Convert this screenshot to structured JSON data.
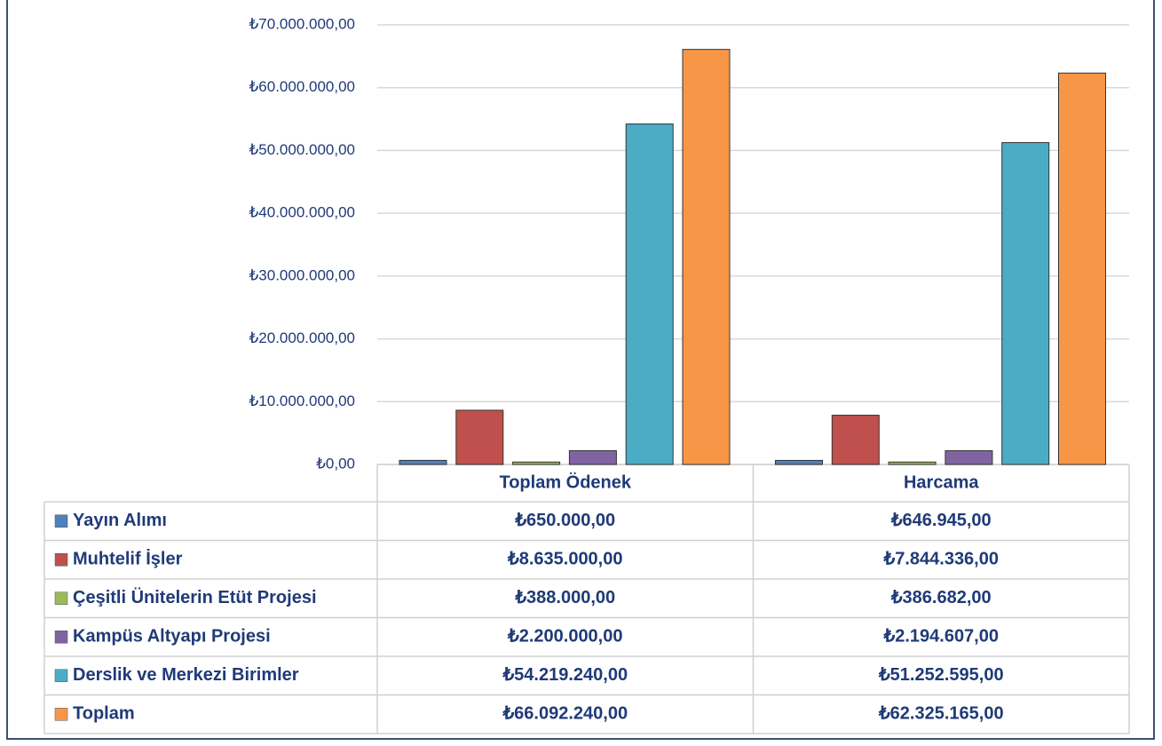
{
  "chart_data": {
    "type": "bar",
    "categories": [
      "Toplam Ödenek",
      "Harcama"
    ],
    "series": [
      {
        "name": "Yayın Alımı",
        "color": "#4f81bd",
        "values": [
          650000,
          646945
        ],
        "value_labels": [
          "₺650.000,00",
          "₺646.945,00"
        ]
      },
      {
        "name": "Muhtelif İşler",
        "color": "#c0504d",
        "values": [
          8635000,
          7844336
        ],
        "value_labels": [
          "₺8.635.000,00",
          "₺7.844.336,00"
        ]
      },
      {
        "name": "Çeşitli Ünitelerin Etüt Projesi",
        "color": "#9bbb59",
        "values": [
          388000,
          386682
        ],
        "value_labels": [
          "₺388.000,00",
          "₺386.682,00"
        ]
      },
      {
        "name": "Kampüs Altyapı Projesi",
        "color": "#8064a2",
        "values": [
          2200000,
          2194607
        ],
        "value_labels": [
          "₺2.200.000,00",
          "₺2.194.607,00"
        ]
      },
      {
        "name": "Derslik ve Merkezi Birimler",
        "color": "#4bacc6",
        "values": [
          54219240,
          51252595
        ],
        "value_labels": [
          "₺54.219.240,00",
          "₺51.252.595,00"
        ]
      },
      {
        "name": "Toplam",
        "color": "#f79646",
        "values": [
          66092240,
          62325165
        ],
        "value_labels": [
          "₺66.092.240,00",
          "₺62.325.165,00"
        ]
      }
    ],
    "ylim": [
      0,
      70000000
    ],
    "yticks": [
      {
        "value": 0,
        "label": "₺0,00"
      },
      {
        "value": 10000000,
        "label": "₺10.000.000,00"
      },
      {
        "value": 20000000,
        "label": "₺20.000.000,00"
      },
      {
        "value": 30000000,
        "label": "₺30.000.000,00"
      },
      {
        "value": 40000000,
        "label": "₺40.000.000,00"
      },
      {
        "value": 50000000,
        "label": "₺50.000.000,00"
      },
      {
        "value": 60000000,
        "label": "₺60.000.000,00"
      },
      {
        "value": 70000000,
        "label": "₺70.000.000,00"
      }
    ],
    "grid": true
  }
}
